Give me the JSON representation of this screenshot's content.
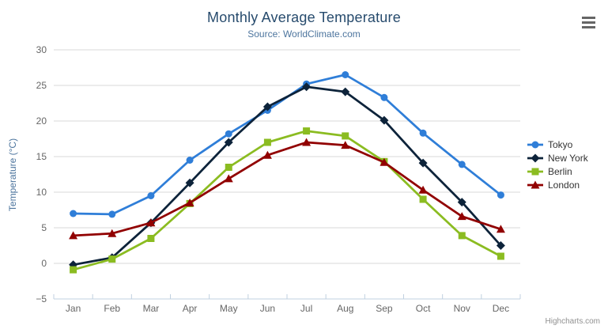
{
  "chart": {
    "export_menu_icon": "hamburger-icon",
    "credits_label": "Highcharts.com"
  },
  "chart_data": {
    "type": "line",
    "title": "Monthly Average Temperature",
    "subtitle": "Source: WorldClimate.com",
    "xlabel": "",
    "ylabel": "Temperature (°C)",
    "ylim": [
      -5,
      30
    ],
    "yticks": [
      -5,
      0,
      5,
      10,
      15,
      20,
      25,
      30
    ],
    "categories": [
      "Jan",
      "Feb",
      "Mar",
      "Apr",
      "May",
      "Jun",
      "Jul",
      "Aug",
      "Sep",
      "Oct",
      "Nov",
      "Dec"
    ],
    "grid": true,
    "legend_position": "right",
    "series": [
      {
        "name": "Tokyo",
        "color": "#2f7ed8",
        "marker": "circle",
        "values": [
          7.0,
          6.9,
          9.5,
          14.5,
          18.2,
          21.5,
          25.2,
          26.5,
          23.3,
          18.3,
          13.9,
          9.6
        ]
      },
      {
        "name": "New York",
        "color": "#0d233a",
        "marker": "diamond",
        "values": [
          -0.2,
          0.8,
          5.7,
          11.3,
          17.0,
          22.0,
          24.8,
          24.1,
          20.1,
          14.1,
          8.6,
          2.5
        ]
      },
      {
        "name": "Berlin",
        "color": "#8bbc21",
        "marker": "square",
        "values": [
          -0.9,
          0.6,
          3.5,
          8.4,
          13.5,
          17.0,
          18.6,
          17.9,
          14.3,
          9.0,
          3.9,
          1.0
        ]
      },
      {
        "name": "London",
        "color": "#910000",
        "marker": "triangle",
        "values": [
          3.9,
          4.2,
          5.7,
          8.5,
          11.9,
          15.2,
          17.0,
          16.6,
          14.2,
          10.3,
          6.6,
          4.8
        ]
      }
    ],
    "colors": {
      "grid_line": "#d8d8d8",
      "axis_line": "#c0d0e0",
      "tick_label": "#666666",
      "title": "#274b6d",
      "subtitle": "#4d759e",
      "axis_title": "#4d759e",
      "legend_text": "#333333",
      "credits": "#909090",
      "menu_icon": "#666666",
      "background": "#ffffff"
    }
  }
}
